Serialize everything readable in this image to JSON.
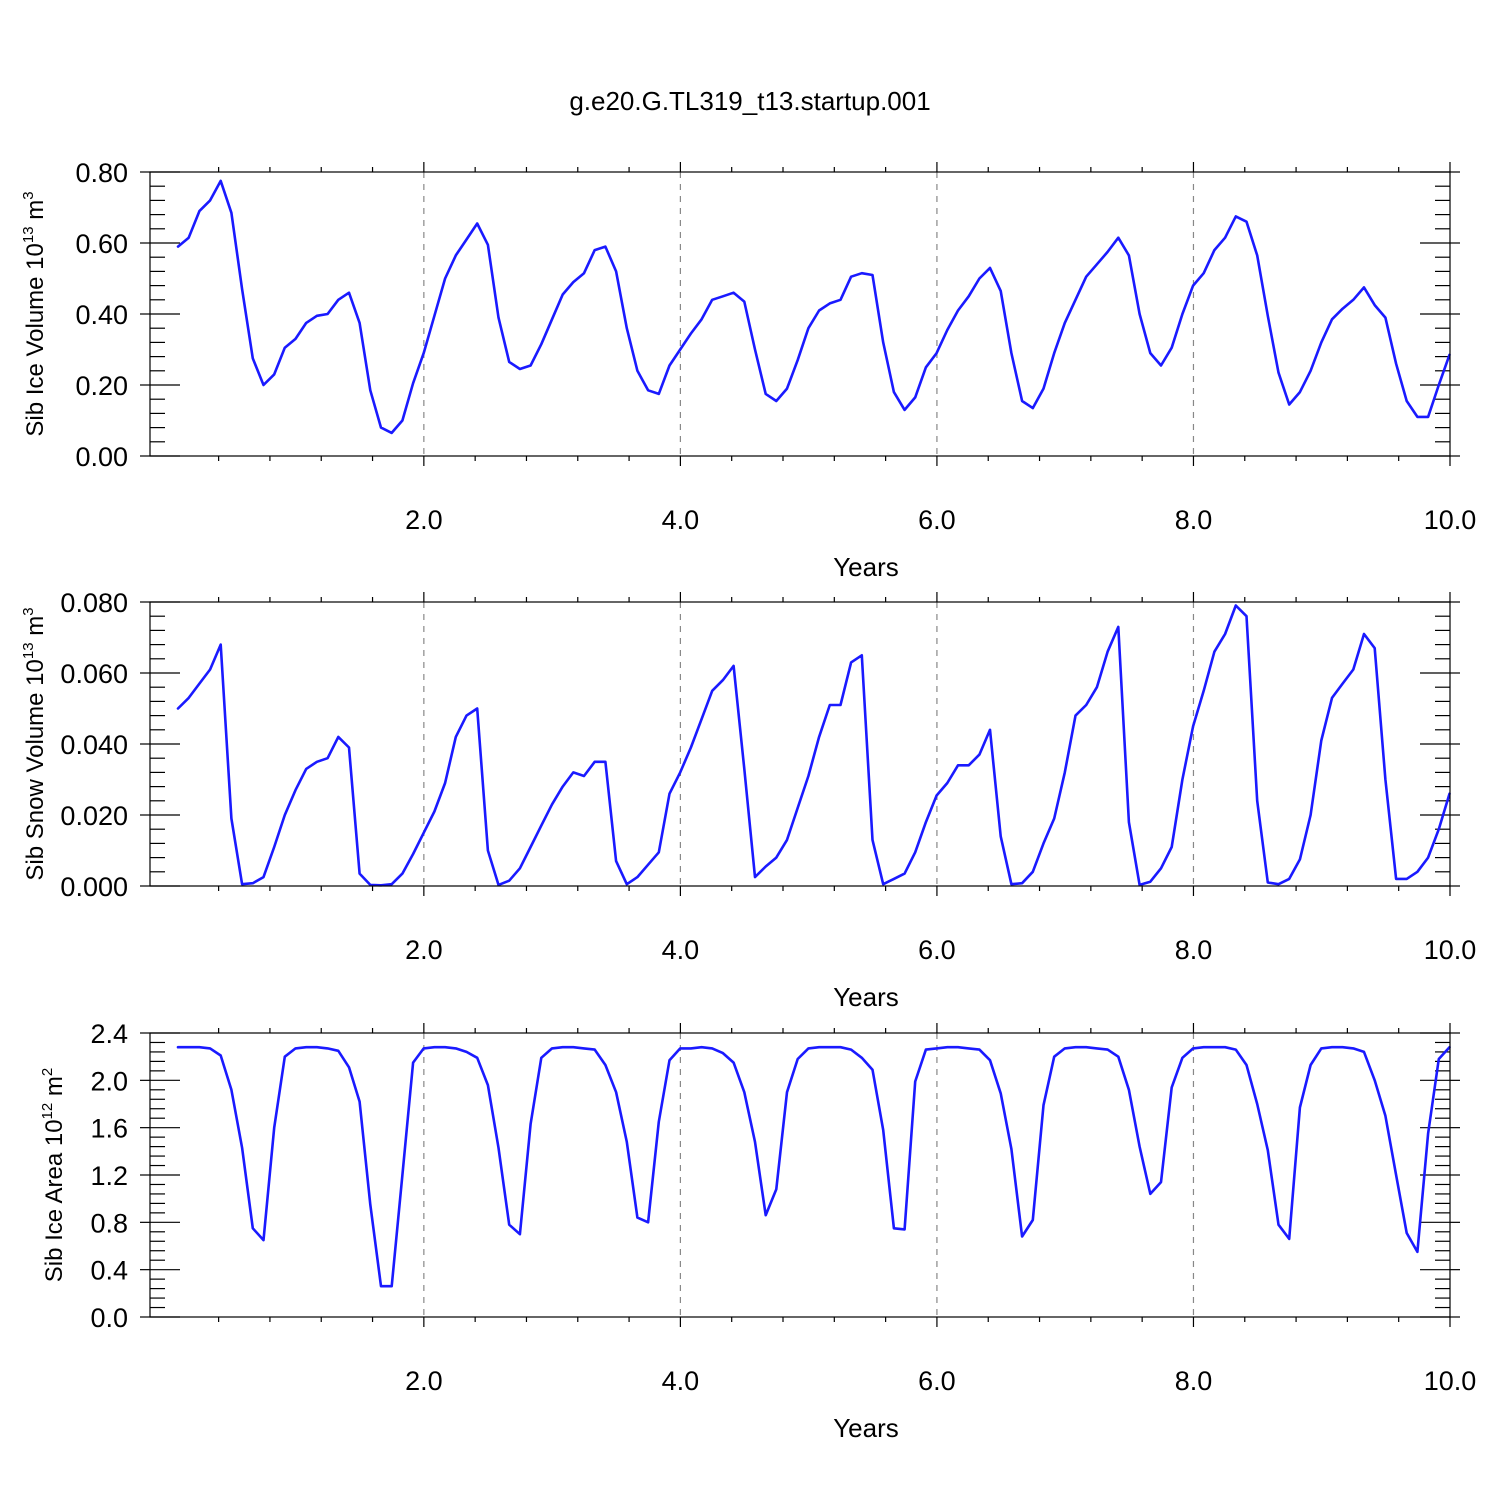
{
  "title": "g.e20.G.TL319_t13.startup.001",
  "colors": {
    "series": "#1a1aff",
    "axis": "#000000",
    "grid": "#888888"
  },
  "chart_data": [
    {
      "type": "line",
      "title": "g.e20.G.TL319_t13.startup.001",
      "xlabel": "Years",
      "ylabel": {
        "base": "Sib Ice Volume 10",
        "exp1": "13",
        "mid": " m",
        "exp2": "3"
      },
      "ylim": [
        0,
        0.8
      ],
      "xlim": [
        0.0833,
        10.0
      ],
      "xticks": [
        2,
        4,
        6,
        8,
        10
      ],
      "xtick_labels": [
        "2.0",
        "4.0",
        "6.0",
        "8.0",
        "10.0"
      ],
      "yticks": [
        0,
        0.2,
        0.4,
        0.6,
        0.8
      ],
      "ytick_labels": [
        "0.00",
        "0.20",
        "0.40",
        "0.60",
        "0.80"
      ],
      "grid": "dashed vertical at major x ticks",
      "x_start": 0.0833,
      "x_step": 0.0833,
      "values": [
        0.59,
        0.615,
        0.69,
        0.72,
        0.775,
        0.685,
        0.47,
        0.275,
        0.2,
        0.23,
        0.305,
        0.33,
        0.375,
        0.395,
        0.4,
        0.44,
        0.46,
        0.375,
        0.185,
        0.08,
        0.065,
        0.1,
        0.205,
        0.29,
        0.395,
        0.5,
        0.565,
        0.61,
        0.655,
        0.595,
        0.39,
        0.265,
        0.245,
        0.255,
        0.315,
        0.385,
        0.455,
        0.49,
        0.515,
        0.58,
        0.59,
        0.52,
        0.36,
        0.24,
        0.185,
        0.175,
        0.255,
        0.3,
        0.345,
        0.385,
        0.44,
        0.45,
        0.46,
        0.435,
        0.3,
        0.175,
        0.155,
        0.19,
        0.27,
        0.36,
        0.41,
        0.43,
        0.44,
        0.505,
        0.515,
        0.51,
        0.32,
        0.18,
        0.13,
        0.165,
        0.25,
        0.29,
        0.355,
        0.41,
        0.45,
        0.5,
        0.53,
        0.465,
        0.29,
        0.155,
        0.135,
        0.19,
        0.29,
        0.375,
        0.44,
        0.505,
        0.54,
        0.575,
        0.615,
        0.565,
        0.4,
        0.29,
        0.255,
        0.305,
        0.4,
        0.48,
        0.515,
        0.58,
        0.615,
        0.675,
        0.66,
        0.565,
        0.395,
        0.235,
        0.145,
        0.18,
        0.24,
        0.32,
        0.385,
        0.415,
        0.44,
        0.475,
        0.425,
        0.39,
        0.26,
        0.155,
        0.11,
        0.11,
        0.2,
        0.285
      ]
    },
    {
      "type": "line",
      "xlabel": "Years",
      "ylabel": {
        "base": "Sib Snow Volume 10",
        "exp1": "13",
        "mid": " m",
        "exp2": "3"
      },
      "ylim": [
        0,
        0.08
      ],
      "xlim": [
        0.0833,
        10.0
      ],
      "xticks": [
        2,
        4,
        6,
        8,
        10
      ],
      "xtick_labels": [
        "2.0",
        "4.0",
        "6.0",
        "8.0",
        "10.0"
      ],
      "yticks": [
        0,
        0.02,
        0.04,
        0.06,
        0.08
      ],
      "ytick_labels": [
        "0.000",
        "0.020",
        "0.040",
        "0.060",
        "0.080"
      ],
      "grid": "dashed vertical at major x ticks",
      "x_start": 0.0833,
      "x_step": 0.0833,
      "values": [
        0.05,
        0.053,
        0.057,
        0.061,
        0.068,
        0.019,
        0.0005,
        0.0008,
        0.0025,
        0.011,
        0.02,
        0.027,
        0.033,
        0.035,
        0.036,
        0.042,
        0.039,
        0.0035,
        0.0003,
        0.0002,
        0.0005,
        0.0035,
        0.009,
        0.015,
        0.021,
        0.029,
        0.042,
        0.048,
        0.05,
        0.01,
        0.0003,
        0.0015,
        0.005,
        0.011,
        0.017,
        0.023,
        0.028,
        0.032,
        0.031,
        0.035,
        0.035,
        0.007,
        0.0005,
        0.0025,
        0.006,
        0.0095,
        0.026,
        0.032,
        0.039,
        0.047,
        0.055,
        0.058,
        0.062,
        0.033,
        0.0025,
        0.0055,
        0.008,
        0.013,
        0.022,
        0.031,
        0.042,
        0.051,
        0.051,
        0.063,
        0.065,
        0.013,
        0.0005,
        0.002,
        0.0035,
        0.0095,
        0.018,
        0.0255,
        0.029,
        0.034,
        0.034,
        0.037,
        0.044,
        0.014,
        0.0005,
        0.0008,
        0.004,
        0.012,
        0.019,
        0.032,
        0.048,
        0.051,
        0.056,
        0.066,
        0.073,
        0.018,
        0.0003,
        0.0012,
        0.005,
        0.011,
        0.03,
        0.045,
        0.055,
        0.066,
        0.071,
        0.079,
        0.076,
        0.024,
        0.001,
        0.0005,
        0.002,
        0.0075,
        0.02,
        0.041,
        0.053,
        0.057,
        0.061,
        0.071,
        0.067,
        0.03,
        0.002,
        0.002,
        0.004,
        0.008,
        0.016,
        0.026
      ]
    },
    {
      "type": "line",
      "xlabel": "Years",
      "ylabel": {
        "base": "Sib Ice Area 10",
        "exp1": "12",
        "mid": " m",
        "exp2": "2"
      },
      "ylim": [
        0,
        2.4
      ],
      "xlim": [
        0.0833,
        10.0
      ],
      "xticks": [
        2,
        4,
        6,
        8,
        10
      ],
      "xtick_labels": [
        "2.0",
        "4.0",
        "6.0",
        "8.0",
        "10.0"
      ],
      "yticks": [
        0,
        0.4,
        0.8,
        1.2,
        1.6,
        2.0,
        2.4
      ],
      "ytick_labels": [
        "0.0",
        "0.4",
        "0.8",
        "1.2",
        "1.6",
        "2.0",
        "2.4"
      ],
      "grid": "dashed vertical at major x ticks",
      "x_start": 0.0833,
      "x_step": 0.0833,
      "values": [
        2.28,
        2.28,
        2.28,
        2.27,
        2.21,
        1.92,
        1.43,
        0.75,
        0.65,
        1.6,
        2.2,
        2.27,
        2.28,
        2.28,
        2.27,
        2.25,
        2.11,
        1.82,
        0.95,
        0.26,
        0.26,
        1.2,
        2.15,
        2.27,
        2.28,
        2.28,
        2.27,
        2.24,
        2.19,
        1.96,
        1.43,
        0.78,
        0.7,
        1.63,
        2.19,
        2.27,
        2.28,
        2.28,
        2.27,
        2.26,
        2.13,
        1.9,
        1.48,
        0.84,
        0.8,
        1.65,
        2.17,
        2.27,
        2.27,
        2.28,
        2.27,
        2.23,
        2.15,
        1.9,
        1.48,
        0.86,
        1.08,
        1.9,
        2.18,
        2.27,
        2.28,
        2.28,
        2.28,
        2.26,
        2.19,
        2.09,
        1.58,
        0.75,
        0.74,
        1.99,
        2.26,
        2.27,
        2.28,
        2.28,
        2.27,
        2.26,
        2.17,
        1.89,
        1.42,
        0.68,
        0.82,
        1.79,
        2.2,
        2.27,
        2.28,
        2.28,
        2.27,
        2.26,
        2.2,
        1.92,
        1.44,
        1.04,
        1.14,
        1.94,
        2.19,
        2.27,
        2.28,
        2.28,
        2.28,
        2.26,
        2.13,
        1.8,
        1.41,
        0.78,
        0.66,
        1.77,
        2.13,
        2.27,
        2.28,
        2.28,
        2.27,
        2.24,
        2.0,
        1.7,
        1.2,
        0.71,
        0.55,
        1.55,
        2.18,
        2.28
      ]
    }
  ]
}
